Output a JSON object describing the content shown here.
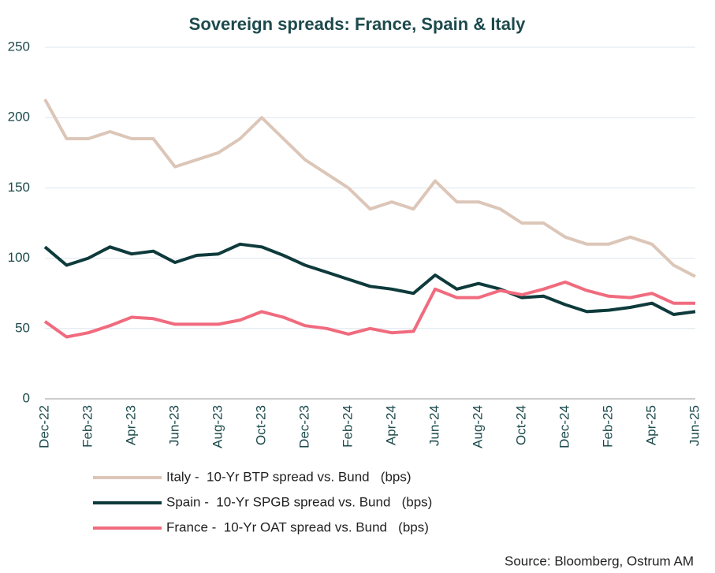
{
  "chart_data": {
    "type": "line",
    "title": "Sovereign spreads: France, Spain & Italy",
    "categories": [
      "Dec-22",
      null,
      "Feb-23",
      null,
      "Apr-23",
      null,
      "Jun-23",
      null,
      "Aug-23",
      null,
      "Oct-23",
      null,
      "Dec-23",
      null,
      "Feb-24",
      null,
      "Apr-24",
      null,
      "Jun-24",
      null,
      "Aug-24",
      null,
      "Oct-24",
      null,
      "Dec-24",
      null,
      "Feb-25",
      null,
      "Apr-25",
      null,
      "Jun-25"
    ],
    "series": [
      {
        "name": "Italy -  10-Yr BTP spread vs. Bund   (bps)",
        "color": "#dcc6b8",
        "values": [
          213,
          185,
          185,
          190,
          185,
          185,
          165,
          170,
          175,
          185,
          200,
          185,
          170,
          160,
          150,
          135,
          140,
          135,
          155,
          140,
          140,
          135,
          125,
          125,
          115,
          110,
          110,
          115,
          110,
          95,
          87
        ]
      },
      {
        "name": "Spain -  10-Yr SPGB spread vs. Bund   (bps)",
        "color": "#0e3a3b",
        "values": [
          108,
          95,
          100,
          108,
          103,
          105,
          97,
          102,
          103,
          110,
          108,
          102,
          95,
          90,
          85,
          80,
          78,
          75,
          88,
          78,
          82,
          78,
          72,
          73,
          67,
          62,
          63,
          65,
          68,
          60,
          62
        ]
      },
      {
        "name": "France -  10-Yr OAT spread vs. Bund   (bps)",
        "color": "#f06b7e",
        "values": [
          55,
          44,
          47,
          52,
          58,
          57,
          53,
          53,
          53,
          56,
          62,
          58,
          52,
          50,
          46,
          50,
          47,
          48,
          78,
          72,
          72,
          77,
          74,
          78,
          83,
          77,
          73,
          72,
          75,
          68,
          68
        ]
      }
    ],
    "ylim": [
      0,
      250
    ],
    "yticks": [
      0,
      50,
      100,
      150,
      200,
      250
    ],
    "grid": true,
    "source": "Source: Bloomberg, Ostrum AM"
  }
}
